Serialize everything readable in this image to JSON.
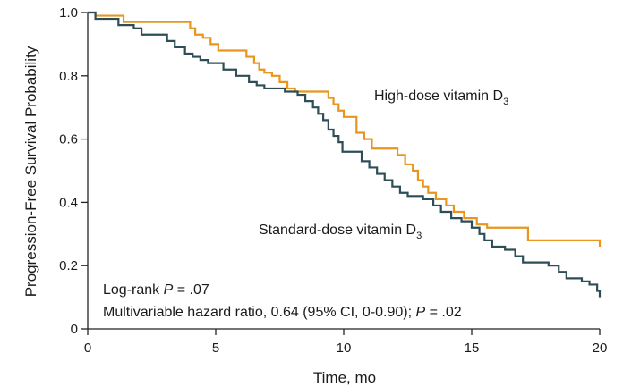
{
  "chart_data": {
    "type": "line",
    "step": true,
    "xlabel": "Time, mo",
    "ylabel": "Progression-Free Survival Probability",
    "xlim": [
      0,
      20
    ],
    "ylim": [
      0,
      1.0
    ],
    "x_ticks": [
      0,
      5,
      10,
      15,
      20
    ],
    "x_tick_labels": [
      "0",
      "5",
      "10",
      "15",
      "20"
    ],
    "y_ticks": [
      0,
      0.2,
      0.4,
      0.6,
      0.8,
      1.0
    ],
    "y_tick_labels": [
      "0",
      "0.2",
      "0.4",
      "0.6",
      "0.8",
      "1.0"
    ],
    "grid": false,
    "series": [
      {
        "name": "High-dose vitamin D3",
        "label_text": "High-dose vitamin D",
        "label_sub": "3",
        "color": "#E8961E",
        "x": [
          0,
          0.3,
          1.4,
          4.0,
          4.2,
          4.5,
          4.8,
          5.1,
          6.2,
          6.5,
          6.7,
          6.9,
          7.2,
          7.5,
          7.8,
          8.1,
          9.4,
          9.6,
          9.8,
          10.0,
          10.5,
          10.8,
          11.1,
          12.1,
          12.4,
          12.7,
          12.9,
          13.1,
          13.3,
          13.6,
          14.0,
          14.3,
          14.7,
          15.2,
          15.6,
          17.2,
          20.0
        ],
        "y": [
          1.0,
          0.99,
          0.97,
          0.95,
          0.93,
          0.92,
          0.9,
          0.88,
          0.86,
          0.84,
          0.82,
          0.81,
          0.8,
          0.78,
          0.76,
          0.75,
          0.73,
          0.71,
          0.69,
          0.67,
          0.62,
          0.6,
          0.57,
          0.55,
          0.52,
          0.5,
          0.47,
          0.45,
          0.43,
          0.41,
          0.39,
          0.37,
          0.35,
          0.33,
          0.32,
          0.28,
          0.26
        ]
      },
      {
        "name": "Standard-dose vitamin D3",
        "label_text": "Standard-dose vitamin D",
        "label_sub": "3",
        "color": "#2E4E57",
        "x": [
          0,
          0.3,
          1.2,
          1.8,
          2.1,
          3.1,
          3.4,
          3.8,
          4.1,
          4.4,
          4.7,
          5.3,
          5.8,
          6.3,
          6.6,
          6.9,
          7.3,
          7.7,
          8.2,
          8.5,
          8.8,
          9.0,
          9.2,
          9.4,
          9.6,
          9.8,
          9.95,
          10.7,
          11.0,
          11.3,
          11.6,
          11.9,
          12.2,
          12.5,
          13.1,
          13.5,
          13.8,
          14.2,
          14.6,
          15.0,
          15.3,
          15.5,
          15.8,
          16.3,
          16.7,
          17.0,
          18.0,
          18.4,
          18.7,
          19.3,
          19.6,
          19.9,
          20.0
        ],
        "y": [
          1.0,
          0.98,
          0.96,
          0.95,
          0.93,
          0.91,
          0.89,
          0.87,
          0.86,
          0.85,
          0.84,
          0.82,
          0.8,
          0.78,
          0.77,
          0.76,
          0.76,
          0.75,
          0.74,
          0.72,
          0.7,
          0.68,
          0.66,
          0.63,
          0.61,
          0.59,
          0.56,
          0.53,
          0.51,
          0.49,
          0.47,
          0.45,
          0.43,
          0.42,
          0.41,
          0.39,
          0.37,
          0.35,
          0.34,
          0.32,
          0.3,
          0.28,
          0.26,
          0.25,
          0.23,
          0.21,
          0.2,
          0.18,
          0.16,
          0.15,
          0.14,
          0.12,
          0.1
        ]
      }
    ],
    "annotations": {
      "logrank_prefix": "Log-rank ",
      "logrank_p": "P",
      "logrank_value": " = .07",
      "hr_text": "Multivariable hazard ratio, 0.64 (95% CI, 0-0.90); ",
      "hr_p": "P",
      "hr_value": " = .02"
    }
  }
}
